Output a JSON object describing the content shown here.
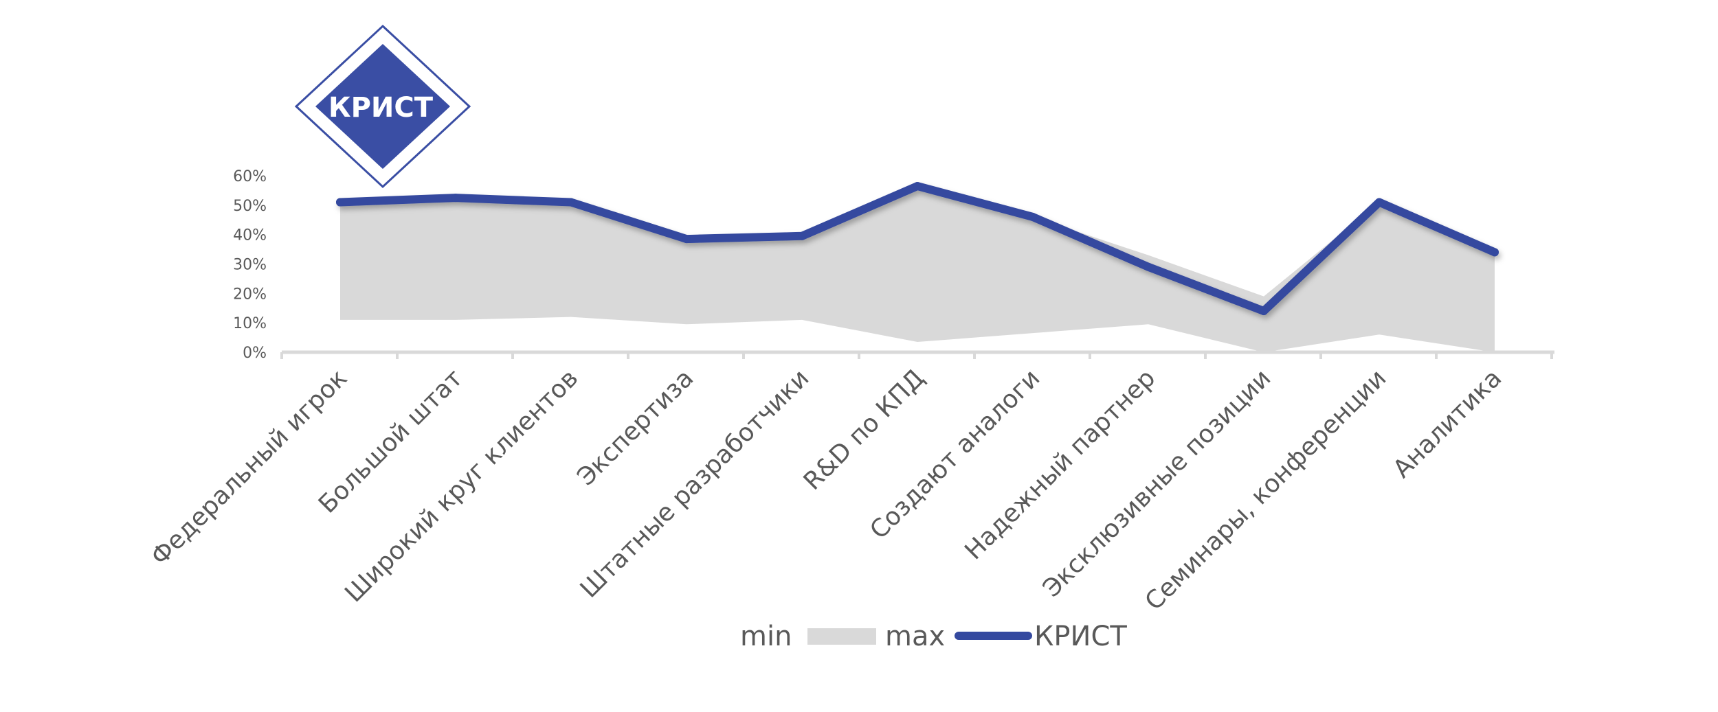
{
  "logo": {
    "text": "КРИСТ",
    "color": "#3a4ea4"
  },
  "legend": {
    "min_label": "min",
    "max_label": "max",
    "krist_label": "КРИСТ"
  },
  "colors": {
    "band": "#d9d9d9",
    "line": "#34499f",
    "axis": "#d9d9d9",
    "text": "#595959"
  },
  "chart_data": {
    "type": "area",
    "categories": [
      "Федеральный игрок",
      "Большой штат",
      "Широкий круг клиентов",
      "Экспертиза",
      "Штатные разработчики",
      "R&D по КПД",
      "Создают аналоги",
      "Надежный партнер",
      "Эксклюзивные позиции",
      "Семинары, конференции",
      "Аналитика"
    ],
    "yticks": [
      "0%",
      "10%",
      "20%",
      "30%",
      "40%",
      "50%",
      "60%"
    ],
    "ylim": [
      0,
      0.6
    ],
    "series": [
      {
        "name": "min",
        "values": [
          0.11,
          0.11,
          0.12,
          0.095,
          0.11,
          0.035,
          0.065,
          0.095,
          0.0,
          0.06,
          0.0
        ]
      },
      {
        "name": "max",
        "values": [
          0.5,
          0.52,
          0.51,
          0.38,
          0.4,
          0.56,
          0.46,
          0.33,
          0.19,
          0.51,
          0.34
        ]
      },
      {
        "name": "КРИСТ",
        "values": [
          0.51,
          0.525,
          0.51,
          0.385,
          0.395,
          0.565,
          0.46,
          0.29,
          0.14,
          0.51,
          0.34
        ]
      }
    ],
    "legend_position": "bottom",
    "grid": false
  }
}
